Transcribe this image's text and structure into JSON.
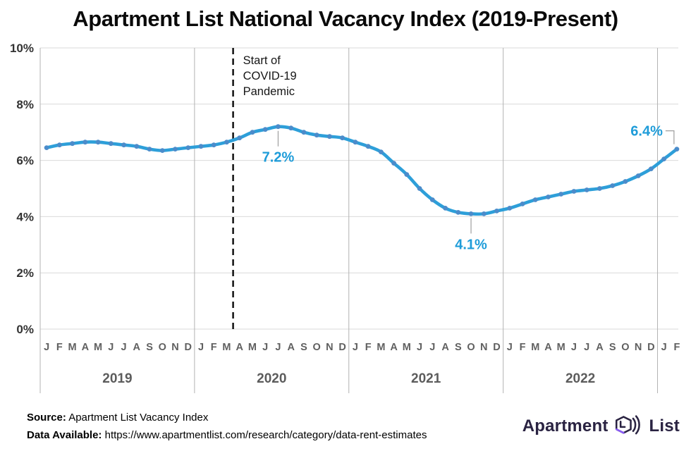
{
  "title": "Apartment List National Vacancy Index (2019-Present)",
  "chart_data": {
    "type": "line",
    "title": "Apartment List National Vacancy Index (2019-Present)",
    "unit": "%",
    "ylim": [
      0,
      10
    ],
    "grid": true,
    "legend": false,
    "yticks": [
      {
        "value": 0,
        "label": "0%"
      },
      {
        "value": 2,
        "label": "2%"
      },
      {
        "value": 4,
        "label": "4%"
      },
      {
        "value": 6,
        "label": "6%"
      },
      {
        "value": 8,
        "label": "8%"
      },
      {
        "value": 10,
        "label": "10%"
      }
    ],
    "month_letters": [
      "J",
      "F",
      "M",
      "A",
      "M",
      "J",
      "J",
      "A",
      "S",
      "O",
      "N",
      "D"
    ],
    "x_groups": [
      {
        "year": "2019",
        "months": 12
      },
      {
        "year": "2020",
        "months": 12
      },
      {
        "year": "2021",
        "months": 12
      },
      {
        "year": "2022",
        "months": 12
      },
      {
        "year": "",
        "months": 2
      }
    ],
    "x_start": "Jan 2019",
    "x_end": "Feb 2023",
    "values": [
      6.45,
      6.55,
      6.6,
      6.65,
      6.65,
      6.6,
      6.55,
      6.5,
      6.4,
      6.35,
      6.4,
      6.45,
      6.5,
      6.55,
      6.65,
      6.8,
      7.0,
      7.1,
      7.2,
      7.15,
      7.0,
      6.9,
      6.85,
      6.8,
      6.65,
      6.5,
      6.3,
      5.9,
      5.5,
      5.0,
      4.6,
      4.3,
      4.15,
      4.1,
      4.1,
      4.2,
      4.3,
      4.45,
      4.6,
      4.7,
      4.8,
      4.9,
      4.95,
      5.0,
      5.1,
      5.25,
      5.45,
      5.7,
      6.05,
      6.4
    ],
    "line_color": "#2D9FD9",
    "marker_color": "#4B8CCB",
    "label_color": "#1E9CD9",
    "covid_line_color": "#111111",
    "annotations": {
      "covid": {
        "text_lines": [
          "Start of",
          "COVID-19",
          "Pandemic"
        ],
        "boundary_index": 15
      },
      "peak": {
        "index": 18,
        "label": "7.2%"
      },
      "trough": {
        "index": 33,
        "label": "4.1%"
      },
      "latest": {
        "index": 49,
        "label": "6.4%"
      }
    }
  },
  "footer": {
    "source_label": "Source:",
    "source_text": " Apartment List Vacancy Index",
    "data_label": "Data Available:",
    "data_text": " https://www.apartmentlist.com/research/category/data-rent-estimates"
  },
  "logo": {
    "part1": "Apartment",
    "part2": "List",
    "navy": "#2a2342",
    "purple": "#8b5cf6"
  }
}
